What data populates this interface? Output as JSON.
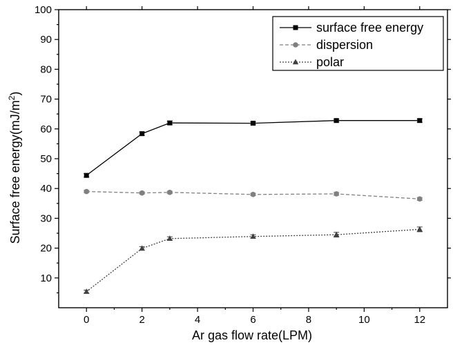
{
  "chart_data": {
    "type": "line",
    "title": "",
    "xlabel": "Ar gas flow rate(LPM)",
    "ylabel": "Surface free energy(mJ/m",
    "ylabel_sup": "2",
    "ylabel_close": ")",
    "xlim": [
      -1,
      13
    ],
    "ylim": [
      0,
      100
    ],
    "x_ticks": [
      0,
      2,
      4,
      6,
      8,
      10,
      12
    ],
    "x_tick_labels": [
      "0",
      "2",
      "4",
      "6",
      "8",
      "10",
      "12"
    ],
    "y_ticks": [
      10,
      20,
      30,
      40,
      50,
      60,
      70,
      80,
      90,
      100
    ],
    "y_tick_labels": [
      "10",
      "20",
      "30",
      "40",
      "50",
      "60",
      "70",
      "80",
      "90",
      "100"
    ],
    "grid": false,
    "legend_position": "top-right",
    "x": [
      0,
      2,
      3,
      6,
      9,
      12
    ],
    "series": [
      {
        "name": "surface free energy",
        "values": [
          44.4,
          58.4,
          62.0,
          61.9,
          62.8,
          62.8
        ],
        "errors": [
          0.6,
          0.6,
          0.6,
          0.5,
          0.5,
          0.6
        ],
        "color": "#000000",
        "dash": "solid",
        "marker": "square"
      },
      {
        "name": "dispersion",
        "values": [
          39.0,
          38.5,
          38.7,
          38.0,
          38.2,
          36.5
        ],
        "errors": [
          0.4,
          0.4,
          0.4,
          0.4,
          0.5,
          0.5
        ],
        "color": "#808080",
        "dash": "dashed",
        "marker": "circle"
      },
      {
        "name": "polar",
        "values": [
          5.4,
          19.9,
          23.2,
          23.9,
          24.5,
          26.3
        ],
        "errors": [
          0.5,
          0.6,
          0.6,
          0.6,
          0.8,
          0.8
        ],
        "color": "#404040",
        "dash": "dotted",
        "marker": "triangle"
      }
    ]
  }
}
